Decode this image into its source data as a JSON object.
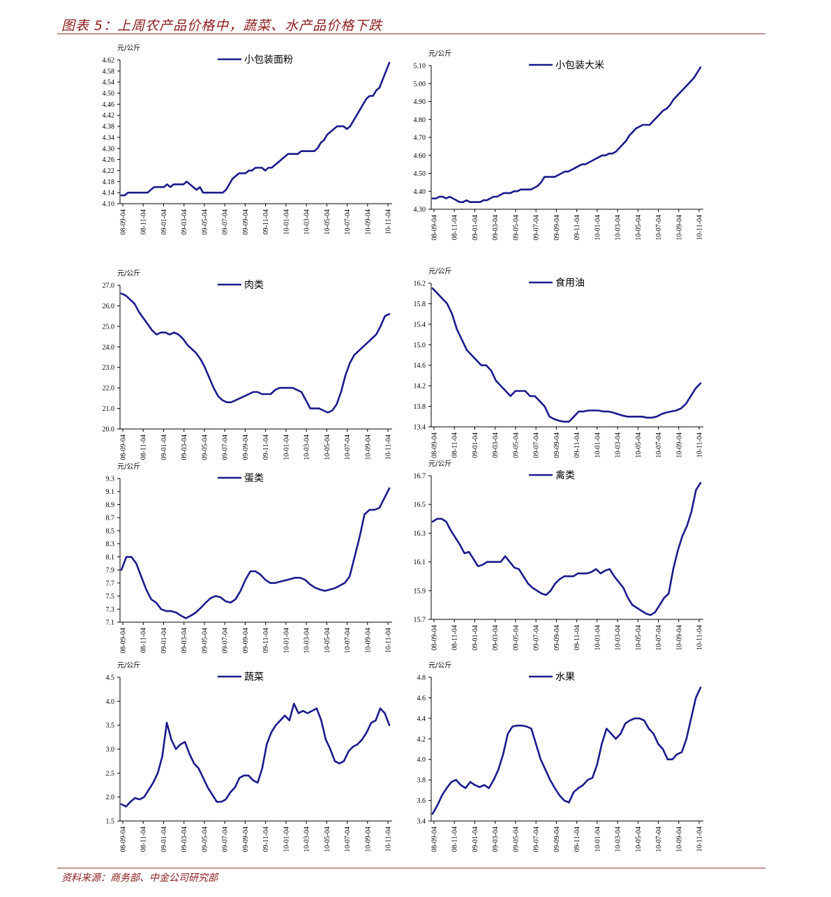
{
  "figure": {
    "title": "图表 5：上周农产品价格中，蔬菜、水产品价格下跌",
    "source": "资料来源：商务部、中金公司研究部",
    "line_color": "#1a1a8c"
  },
  "chart_data": [
    {
      "type": "line",
      "series_name": "小包装面粉",
      "unit": "元/公斤",
      "yticks": [
        "4.10",
        "4.14",
        "4.18",
        "4.22",
        "4.26",
        "4.30",
        "4.34",
        "4.38",
        "4.42",
        "4.46",
        "4.50",
        "4.54",
        "4.58",
        "4.62"
      ],
      "ylim": [
        4.1,
        4.62
      ],
      "xticks": [
        "08-09-04",
        "08-11-04",
        "09-01-04",
        "09-03-04",
        "09-05-04",
        "09-07-04",
        "09-09-04",
        "09-11-04",
        "10-01-04",
        "10-03-04",
        "10-05-04",
        "10-07-04",
        "10-09-04",
        "10-11-04"
      ],
      "values": [
        4.13,
        4.13,
        4.14,
        4.14,
        4.14,
        4.14,
        4.14,
        4.14,
        4.14,
        4.15,
        4.16,
        4.16,
        4.16,
        4.16,
        4.17,
        4.16,
        4.17,
        4.17,
        4.17,
        4.17,
        4.18,
        4.17,
        4.16,
        4.15,
        4.16,
        4.14,
        4.14,
        4.14,
        4.14,
        4.14,
        4.14,
        4.14,
        4.15,
        4.17,
        4.19,
        4.2,
        4.21,
        4.21,
        4.21,
        4.22,
        4.22,
        4.23,
        4.23,
        4.23,
        4.22,
        4.23,
        4.23,
        4.24,
        4.25,
        4.26,
        4.27,
        4.28,
        4.28,
        4.28,
        4.28,
        4.29,
        4.29,
        4.29,
        4.29,
        4.29,
        4.3,
        4.32,
        4.33,
        4.35,
        4.36,
        4.37,
        4.38,
        4.38,
        4.38,
        4.37,
        4.38,
        4.4,
        4.42,
        4.44,
        4.46,
        4.48,
        4.49,
        4.49,
        4.51,
        4.52,
        4.55,
        4.58,
        4.61
      ]
    },
    {
      "type": "line",
      "series_name": "小包装大米",
      "unit": "元/公斤",
      "yticks": [
        "4.30",
        "4.40",
        "4.50",
        "4.60",
        "4.70",
        "4.80",
        "4.90",
        "5.00",
        "5.10"
      ],
      "ylim": [
        4.3,
        5.1
      ],
      "xticks": [
        "08-09-04",
        "08-11-04",
        "09-01-04",
        "09-03-04",
        "09-05-04",
        "09-07-04",
        "09-09-04",
        "09-11-04",
        "10-01-04",
        "10-03-04",
        "10-05-04",
        "10-07-04",
        "10-09-04",
        "10-11-04"
      ],
      "values": [
        4.36,
        4.36,
        4.37,
        4.37,
        4.36,
        4.37,
        4.36,
        4.35,
        4.34,
        4.34,
        4.35,
        4.34,
        4.34,
        4.34,
        4.34,
        4.35,
        4.35,
        4.36,
        4.37,
        4.37,
        4.38,
        4.39,
        4.39,
        4.39,
        4.4,
        4.4,
        4.41,
        4.41,
        4.41,
        4.41,
        4.42,
        4.43,
        4.45,
        4.48,
        4.48,
        4.48,
        4.48,
        4.49,
        4.5,
        4.51,
        4.51,
        4.52,
        4.53,
        4.54,
        4.55,
        4.55,
        4.56,
        4.57,
        4.58,
        4.59,
        4.6,
        4.6,
        4.61,
        4.61,
        4.62,
        4.64,
        4.66,
        4.68,
        4.71,
        4.73,
        4.75,
        4.76,
        4.77,
        4.77,
        4.77,
        4.79,
        4.81,
        4.83,
        4.85,
        4.86,
        4.88,
        4.91,
        4.93,
        4.95,
        4.97,
        4.99,
        5.01,
        5.03,
        5.06,
        5.09
      ]
    },
    {
      "type": "line",
      "series_name": "肉类",
      "unit": "元/公斤",
      "yticks": [
        "20.0",
        "21.0",
        "22.0",
        "23.0",
        "24.0",
        "25.0",
        "26.0",
        "27.0"
      ],
      "ylim": [
        20.0,
        27.0
      ],
      "xticks": [
        "08-09-04",
        "08-11-04",
        "09-01-04",
        "09-03-04",
        "09-05-04",
        "09-07-04",
        "09-09-04",
        "09-11-04",
        "10-01-04",
        "10-03-04",
        "10-05-04",
        "10-07-04",
        "10-09-04",
        "10-11-04"
      ],
      "values": [
        26.6,
        26.5,
        26.3,
        26.1,
        25.7,
        25.4,
        25.1,
        24.8,
        24.6,
        24.7,
        24.7,
        24.6,
        24.7,
        24.6,
        24.4,
        24.1,
        23.9,
        23.7,
        23.4,
        23.0,
        22.5,
        22.0,
        21.6,
        21.4,
        21.3,
        21.3,
        21.4,
        21.5,
        21.6,
        21.7,
        21.8,
        21.8,
        21.7,
        21.7,
        21.7,
        21.9,
        22.0,
        22.0,
        22.0,
        22.0,
        21.9,
        21.8,
        21.4,
        21.0,
        21.0,
        21.0,
        20.9,
        20.8,
        20.9,
        21.2,
        21.8,
        22.6,
        23.2,
        23.6,
        23.8,
        24.0,
        24.2,
        24.4,
        24.6,
        25.0,
        25.5,
        25.6
      ]
    },
    {
      "type": "line",
      "series_name": "食用油",
      "unit": "元/公斤",
      "yticks": [
        "13.4",
        "13.8",
        "14.2",
        "14.6",
        "15.0",
        "15.4",
        "15.8",
        "16.2"
      ],
      "ylim": [
        13.4,
        16.2
      ],
      "xticks": [
        "08-09-04",
        "08-11-04",
        "09-01-04",
        "09-03-04",
        "09-05-04",
        "09-07-04",
        "09-09-04",
        "09-11-04",
        "10-01-04",
        "10-03-04",
        "10-05-04",
        "10-07-04",
        "10-09-04",
        "10-11-04"
      ],
      "values": [
        16.1,
        16.0,
        15.9,
        15.8,
        15.6,
        15.3,
        15.1,
        14.9,
        14.8,
        14.7,
        14.6,
        14.6,
        14.5,
        14.3,
        14.2,
        14.1,
        14.0,
        14.1,
        14.1,
        14.1,
        14.0,
        14.0,
        13.9,
        13.8,
        13.6,
        13.55,
        13.52,
        13.5,
        13.5,
        13.6,
        13.7,
        13.7,
        13.72,
        13.72,
        13.72,
        13.7,
        13.7,
        13.68,
        13.65,
        13.62,
        13.6,
        13.6,
        13.6,
        13.6,
        13.58,
        13.58,
        13.6,
        13.65,
        13.68,
        13.7,
        13.72,
        13.76,
        13.85,
        14.0,
        14.15,
        14.25
      ]
    },
    {
      "type": "line",
      "series_name": "蛋类",
      "unit": "元/公斤",
      "yticks": [
        "7.1",
        "7.3",
        "7.5",
        "7.7",
        "7.9",
        "8.1",
        "8.3",
        "8.5",
        "8.7",
        "8.9",
        "9.1",
        "9.3"
      ],
      "ylim": [
        7.1,
        9.3
      ],
      "xticks": [
        "08-09-04",
        "08-11-04",
        "09-01-04",
        "09-03-04",
        "09-05-04",
        "09-07-04",
        "09-09-04",
        "09-11-04",
        "10-01-04",
        "10-03-04",
        "10-05-04",
        "10-07-04",
        "10-09-04",
        "10-11-04"
      ],
      "values": [
        7.9,
        8.1,
        8.1,
        8.0,
        7.8,
        7.6,
        7.45,
        7.4,
        7.3,
        7.27,
        7.27,
        7.25,
        7.2,
        7.16,
        7.2,
        7.25,
        7.32,
        7.4,
        7.47,
        7.5,
        7.48,
        7.42,
        7.4,
        7.45,
        7.58,
        7.75,
        7.88,
        7.88,
        7.83,
        7.75,
        7.7,
        7.7,
        7.72,
        7.74,
        7.76,
        7.78,
        7.78,
        7.75,
        7.68,
        7.63,
        7.6,
        7.58,
        7.6,
        7.62,
        7.66,
        7.7,
        7.8,
        8.1,
        8.4,
        8.75,
        8.82,
        8.82,
        8.85,
        9.0,
        9.15
      ]
    },
    {
      "type": "line",
      "series_name": "禽类",
      "unit": "元/公斤",
      "yticks": [
        "15.7",
        "15.9",
        "16.1",
        "16.3",
        "16.5",
        "16.7"
      ],
      "ylim": [
        15.7,
        16.7
      ],
      "xticks": [
        "08-09-04",
        "08-11-04",
        "09-01-04",
        "09-03-04",
        "09-05-04",
        "09-07-04",
        "09-09-04",
        "09-11-04",
        "10-01-04",
        "10-03-04",
        "10-05-04",
        "10-07-04",
        "10-09-04",
        "10-11-04"
      ],
      "values": [
        16.38,
        16.4,
        16.4,
        16.38,
        16.32,
        16.27,
        16.22,
        16.16,
        16.17,
        16.12,
        16.07,
        16.08,
        16.1,
        16.1,
        16.1,
        16.1,
        16.14,
        16.1,
        16.06,
        16.05,
        16.0,
        15.95,
        15.92,
        15.9,
        15.88,
        15.87,
        15.9,
        15.95,
        15.98,
        16.0,
        16.0,
        16.0,
        16.02,
        16.02,
        16.02,
        16.03,
        16.05,
        16.02,
        16.04,
        16.05,
        16.0,
        15.96,
        15.92,
        15.85,
        15.8,
        15.78,
        15.76,
        15.74,
        15.73,
        15.75,
        15.8,
        15.85,
        15.88,
        16.05,
        16.18,
        16.28,
        16.35,
        16.45,
        16.6,
        16.65
      ]
    },
    {
      "type": "line",
      "series_name": "蔬菜",
      "unit": "元/公斤",
      "yticks": [
        "1.5",
        "2.0",
        "2.5",
        "3.0",
        "3.5",
        "4.0",
        "4.5"
      ],
      "ylim": [
        1.5,
        4.5
      ],
      "xticks": [
        "08-09-04",
        "08-11-04",
        "09-01-04",
        "09-03-04",
        "09-05-04",
        "09-07-04",
        "09-09-04",
        "09-11-04",
        "10-01-04",
        "10-03-04",
        "10-05-04",
        "10-07-04",
        "10-09-04",
        "10-11-04"
      ],
      "values": [
        1.85,
        1.8,
        1.9,
        1.98,
        1.95,
        2.0,
        2.15,
        2.3,
        2.5,
        2.85,
        3.55,
        3.2,
        3.0,
        3.1,
        3.15,
        2.9,
        2.7,
        2.6,
        2.4,
        2.2,
        2.05,
        1.9,
        1.9,
        1.95,
        2.1,
        2.2,
        2.4,
        2.45,
        2.45,
        2.35,
        2.3,
        2.6,
        3.1,
        3.35,
        3.5,
        3.6,
        3.7,
        3.6,
        3.95,
        3.75,
        3.8,
        3.75,
        3.8,
        3.85,
        3.6,
        3.2,
        3.0,
        2.75,
        2.7,
        2.75,
        2.95,
        3.05,
        3.1,
        3.2,
        3.35,
        3.55,
        3.6,
        3.85,
        3.75,
        3.5
      ]
    },
    {
      "type": "line",
      "series_name": "水果",
      "unit": "元/公斤",
      "yticks": [
        "3.4",
        "3.6",
        "3.8",
        "4.0",
        "4.2",
        "4.4",
        "4.6",
        "4.8"
      ],
      "ylim": [
        3.4,
        4.8
      ],
      "xticks": [
        "08-09-04",
        "08-11-04",
        "09-01-04",
        "09-03-04",
        "09-05-04",
        "09-07-04",
        "09-09-04",
        "09-11-04",
        "10-01-04",
        "10-03-04",
        "10-05-04",
        "10-07-04",
        "10-09-04",
        "10-11-04"
      ],
      "values": [
        3.47,
        3.55,
        3.65,
        3.72,
        3.78,
        3.8,
        3.75,
        3.72,
        3.78,
        3.75,
        3.73,
        3.75,
        3.72,
        3.8,
        3.9,
        4.05,
        4.25,
        4.32,
        4.33,
        4.33,
        4.32,
        4.3,
        4.15,
        4.0,
        3.9,
        3.8,
        3.72,
        3.65,
        3.6,
        3.58,
        3.68,
        3.72,
        3.75,
        3.8,
        3.82,
        3.95,
        4.15,
        4.3,
        4.25,
        4.2,
        4.25,
        4.35,
        4.38,
        4.4,
        4.4,
        4.38,
        4.3,
        4.25,
        4.15,
        4.1,
        4.0,
        4.0,
        4.05,
        4.07,
        4.2,
        4.4,
        4.6,
        4.7
      ]
    }
  ]
}
